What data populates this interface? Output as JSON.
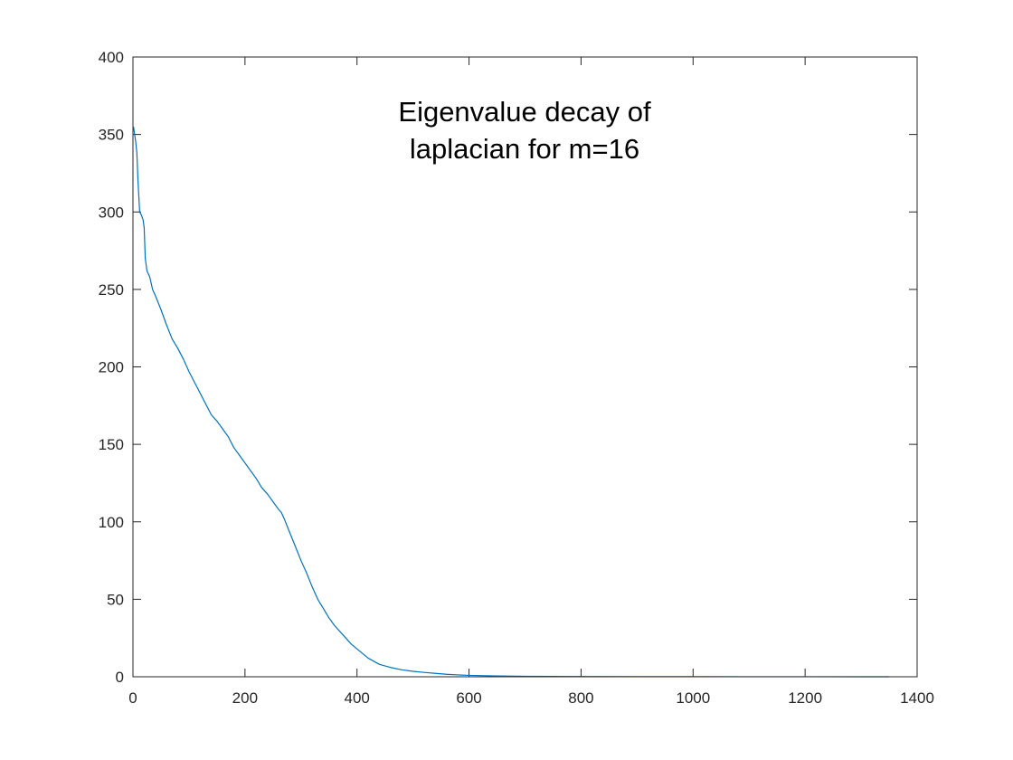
{
  "chart_data": {
    "type": "line",
    "title_lines": [
      "Eigenvalue decay of",
      "laplacian for m=16"
    ],
    "xlabel": "",
    "ylabel": "",
    "xlim": [
      0,
      1400
    ],
    "ylim": [
      0,
      400
    ],
    "xticks": [
      0,
      200,
      400,
      600,
      800,
      1000,
      1200,
      1400
    ],
    "yticks": [
      0,
      50,
      100,
      150,
      200,
      250,
      300,
      350,
      400
    ],
    "xtick_labels": [
      "0",
      "200",
      "400",
      "600",
      "800",
      "1000",
      "1200",
      "1400"
    ],
    "ytick_labels": [
      "0",
      "50",
      "100",
      "150",
      "200",
      "250",
      "300",
      "350",
      "400"
    ],
    "grid": false,
    "box": true,
    "series": [
      {
        "color": "#0072BD",
        "x": [
          1,
          3,
          5,
          7,
          9,
          12,
          15,
          18,
          20,
          22,
          25,
          30,
          35,
          40,
          50,
          60,
          70,
          80,
          90,
          100,
          110,
          120,
          130,
          140,
          150,
          160,
          170,
          180,
          190,
          200,
          210,
          220,
          230,
          240,
          250,
          260,
          265,
          270,
          280,
          290,
          300,
          310,
          320,
          330,
          340,
          350,
          360,
          370,
          380,
          390,
          400,
          410,
          420,
          440,
          460,
          480,
          500,
          520,
          540,
          560,
          580,
          600,
          650,
          700,
          800,
          900,
          1000,
          1100,
          1200,
          1300,
          1350
        ],
        "y": [
          355,
          350,
          345,
          338,
          320,
          300,
          298,
          295,
          290,
          270,
          262,
          258,
          250,
          246,
          237,
          227,
          218,
          212,
          205,
          197,
          190,
          183,
          176,
          169,
          165,
          160,
          155,
          148,
          143,
          138,
          133,
          128,
          122,
          118,
          113,
          108,
          106,
          102,
          93,
          84,
          75,
          67,
          58,
          50,
          44,
          38,
          33,
          29,
          25,
          21,
          18,
          15,
          12,
          8,
          6,
          4.5,
          3.5,
          2.8,
          2.2,
          1.6,
          1.2,
          0.9,
          0.5,
          0.3,
          0.15,
          0.1,
          0.05,
          0.04,
          0.03,
          0.02,
          0.01
        ]
      }
    ]
  }
}
